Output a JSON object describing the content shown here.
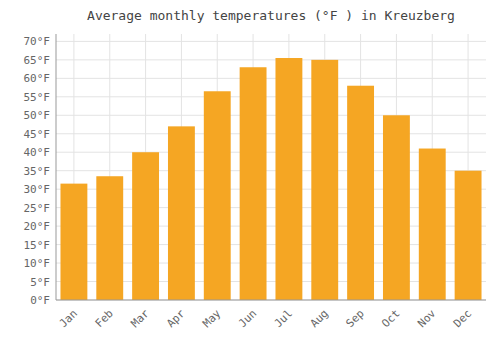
{
  "chart_data": {
    "type": "bar",
    "title": "Average monthly temperatures (°F ) in Kreuzberg",
    "categories": [
      "Jan",
      "Feb",
      "Mar",
      "Apr",
      "May",
      "Jun",
      "Jul",
      "Aug",
      "Sep",
      "Oct",
      "Nov",
      "Dec"
    ],
    "values": [
      31.5,
      33.5,
      40.0,
      47.0,
      56.5,
      63.0,
      65.5,
      65.0,
      58.0,
      50.0,
      41.0,
      35.0
    ],
    "color": "#F5A623",
    "ylim": [
      0,
      72
    ],
    "yticks": [
      {
        "value": 0,
        "label": "0°F"
      },
      {
        "value": 5,
        "label": "5°F"
      },
      {
        "value": 10,
        "label": "10°F"
      },
      {
        "value": 15,
        "label": "15°F"
      },
      {
        "value": 20,
        "label": "20°F"
      },
      {
        "value": 25,
        "label": "25°F"
      },
      {
        "value": 30,
        "label": "30°F"
      },
      {
        "value": 35,
        "label": "35°F"
      },
      {
        "value": 40,
        "label": "40°F"
      },
      {
        "value": 45,
        "label": "45°F"
      },
      {
        "value": 50,
        "label": "50°F"
      },
      {
        "value": 55,
        "label": "55°F"
      },
      {
        "value": 60,
        "label": "60°F"
      },
      {
        "value": 65,
        "label": "65°F"
      },
      {
        "value": 70,
        "label": "70°F"
      }
    ],
    "grid": true
  }
}
